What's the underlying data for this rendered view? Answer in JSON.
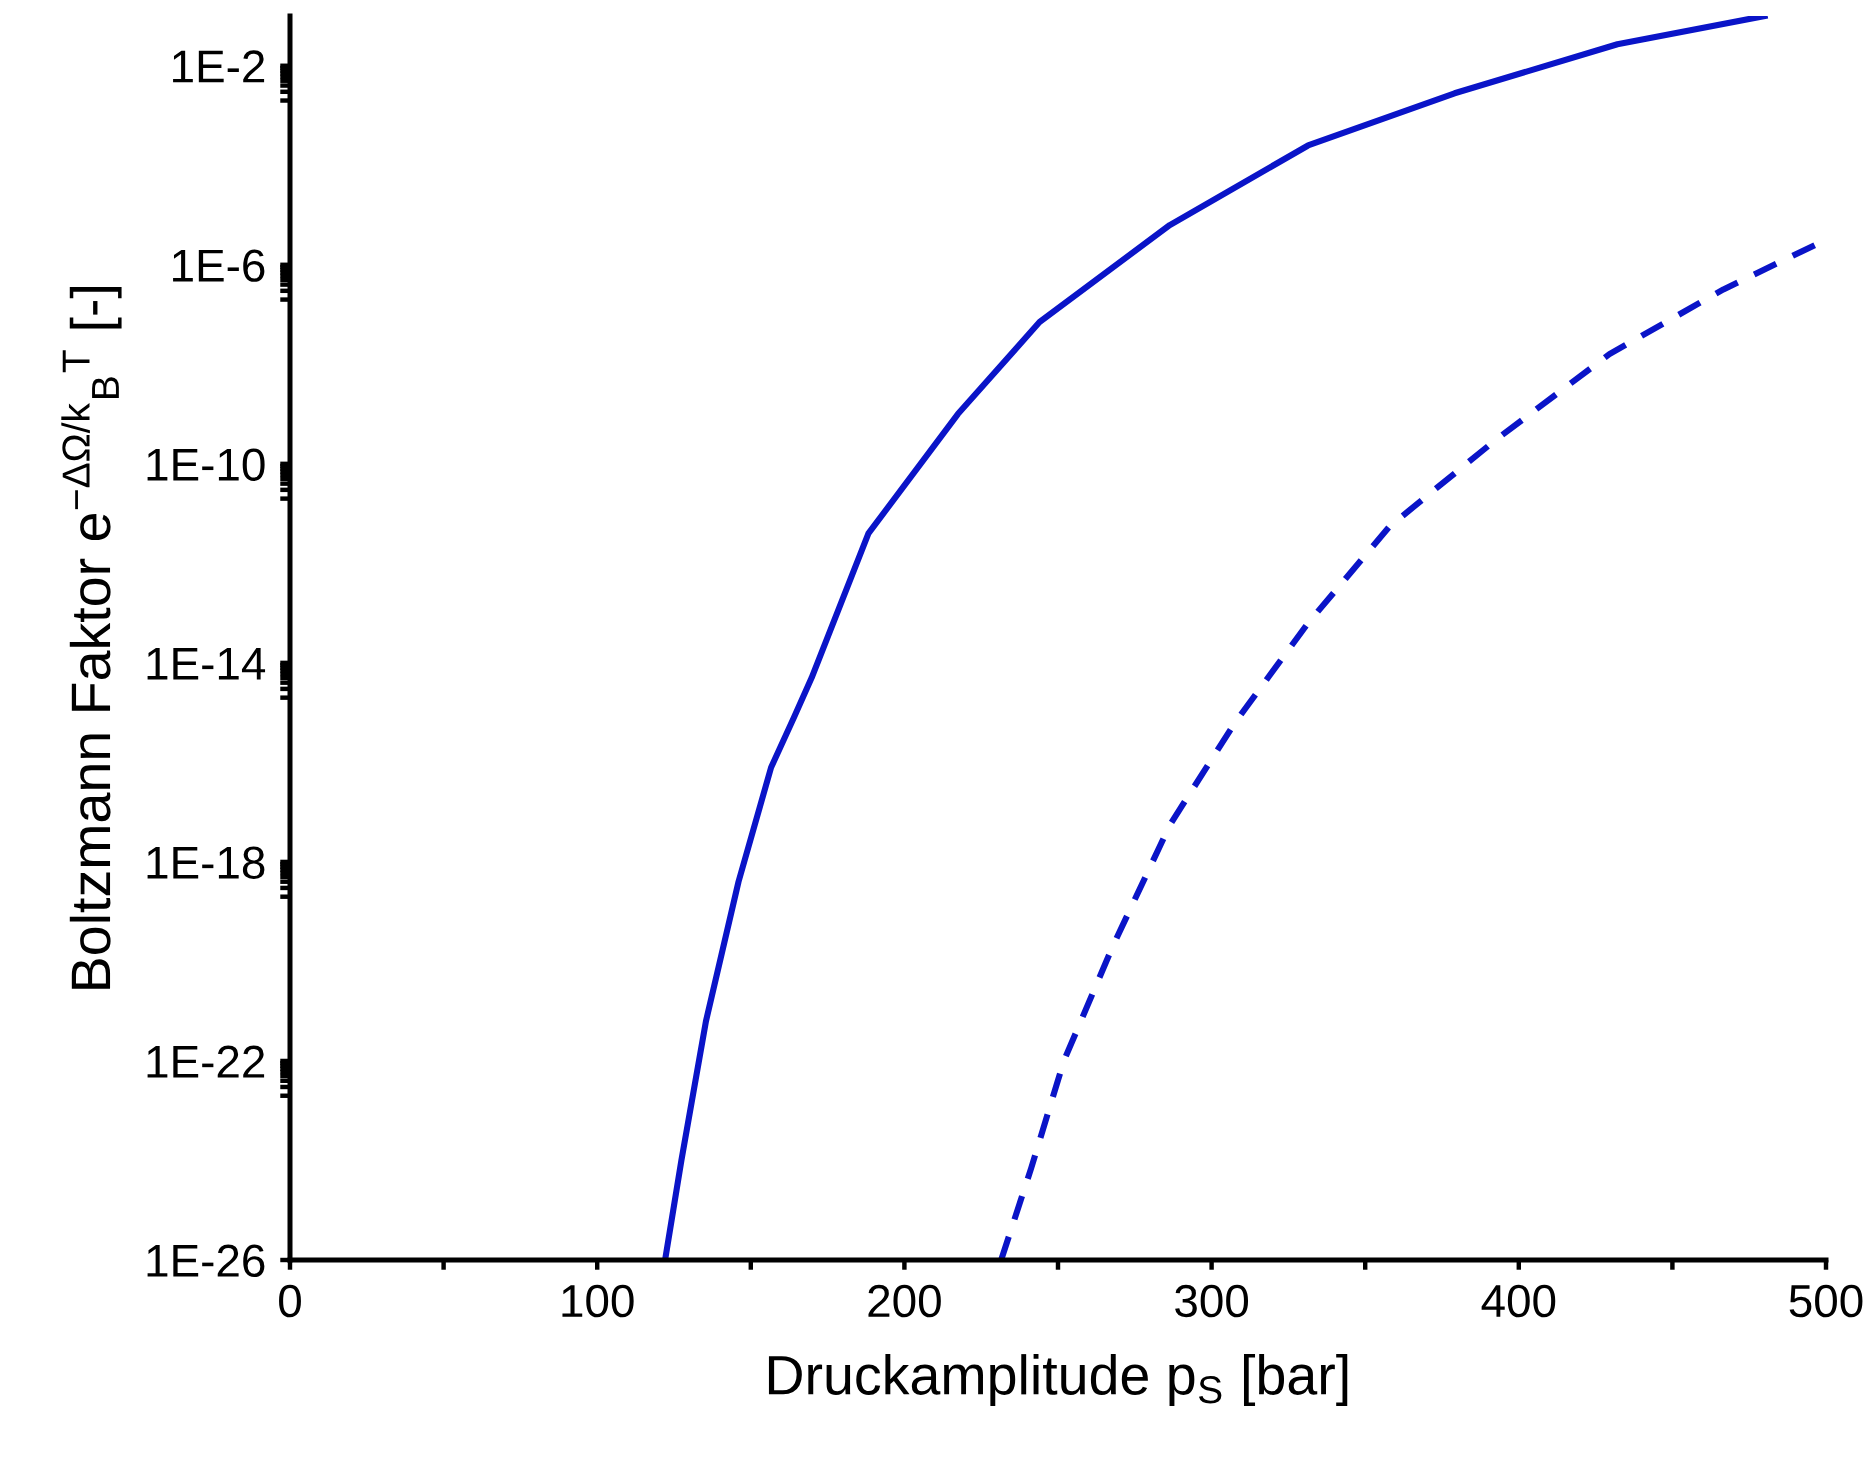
{
  "chart_data": {
    "type": "line",
    "xlabel": "Druckamplitude p$_{S}$ [bar]",
    "ylabel": "Boltzmann Faktor e$^{−ΔΩ/k}$$_{B}$$^{T}$ [-]",
    "log": "y",
    "grid": false,
    "marker": "none",
    "xlim": [
      0,
      500
    ],
    "ylim": [
      1e-26,
      0.1
    ],
    "xticks": [
      0,
      {
        "value": 50,
        "label": null
      },
      100,
      {
        "value": 150,
        "label": null
      },
      200,
      {
        "value": 250,
        "label": null
      },
      300,
      {
        "value": 350,
        "label": null
      },
      400,
      {
        "value": 450,
        "label": null
      },
      500
    ],
    "yticks": [
      {
        "value": 1e-26,
        "label": "1E-26"
      },
      {
        "value": 1e-22,
        "label": "1E-22"
      },
      {
        "value": 9e-23,
        "label": null
      },
      {
        "value": 8e-23,
        "label": null
      },
      {
        "value": 7e-23,
        "label": null
      },
      {
        "value": 6e-23,
        "label": null
      },
      {
        "value": 5e-23,
        "label": null
      },
      {
        "value": 4e-23,
        "label": null
      },
      {
        "value": 3e-23,
        "label": null
      },
      {
        "value": 2e-23,
        "label": null
      },
      {
        "value": 1e-18,
        "label": "1E-18"
      },
      {
        "value": 9e-19,
        "label": null
      },
      {
        "value": 8e-19,
        "label": null
      },
      {
        "value": 7e-19,
        "label": null
      },
      {
        "value": 6e-19,
        "label": null
      },
      {
        "value": 5e-19,
        "label": null
      },
      {
        "value": 4e-19,
        "label": null
      },
      {
        "value": 3e-19,
        "label": null
      },
      {
        "value": 2e-19,
        "label": null
      },
      {
        "value": 1e-14,
        "label": "1E-14"
      },
      {
        "value": 9e-15,
        "label": null
      },
      {
        "value": 8e-15,
        "label": null
      },
      {
        "value": 7e-15,
        "label": null
      },
      {
        "value": 6e-15,
        "label": null
      },
      {
        "value": 5e-15,
        "label": null
      },
      {
        "value": 4e-15,
        "label": null
      },
      {
        "value": 3e-15,
        "label": null
      },
      {
        "value": 2e-15,
        "label": null
      },
      {
        "value": 1e-10,
        "label": "1E-10"
      },
      {
        "value": 9e-11,
        "label": null
      },
      {
        "value": 8e-11,
        "label": null
      },
      {
        "value": 7e-11,
        "label": null
      },
      {
        "value": 6e-11,
        "label": null
      },
      {
        "value": 5e-11,
        "label": null
      },
      {
        "value": 4e-11,
        "label": null
      },
      {
        "value": 3e-11,
        "label": null
      },
      {
        "value": 2e-11,
        "label": null
      },
      {
        "value": 1e-06,
        "label": "1E-6"
      },
      {
        "value": 9e-07,
        "label": null
      },
      {
        "value": 8e-07,
        "label": null
      },
      {
        "value": 7e-07,
        "label": null
      },
      {
        "value": 6e-07,
        "label": null
      },
      {
        "value": 5e-07,
        "label": null
      },
      {
        "value": 4e-07,
        "label": null
      },
      {
        "value": 3e-07,
        "label": null
      },
      {
        "value": 2e-07,
        "label": null
      },
      {
        "value": 0.01,
        "label": "1E-2"
      },
      {
        "value": 0.009,
        "label": null
      },
      {
        "value": 0.008,
        "label": null
      },
      {
        "value": 0.007,
        "label": null
      },
      {
        "value": 0.006,
        "label": null
      },
      {
        "value": 0.005,
        "label": null
      },
      {
        "value": 0.004,
        "label": null
      },
      {
        "value": 0.003,
        "label": null
      },
      {
        "value": 0.002,
        "label": null
      }
    ],
    "series": [
      {
        "color": "#0a14c8",
        "line_style": "solid",
        "x": [
          122.1,
          127.4,
          135.4,
          146.0,
          156.6,
          164.0,
          169.8,
          188.3,
          217.4,
          244.0,
          286.4,
          331.4,
          379.1,
          432.1,
          480
        ],
        "values": [
          1e-26,
          1e-24,
          6.3e-22,
          4e-19,
          7.9e-17,
          7.9e-16,
          5e-15,
          4e-12,
          1e-09,
          7.1e-08,
          6.3e-06,
          0.00025,
          0.0028,
          0.027,
          0.1
        ]
      },
      {
        "color": "#0a14c8",
        "line_style": "dashed",
        "x": [
          231.5,
          241.3,
          251.9,
          267.8,
          286.4,
          307.6,
          331.4,
          357.9,
          392.4,
          429.5,
          466.6,
          500
        ],
        "values": [
          1e-26,
          7.1e-25,
          1e-22,
          2e-20,
          5.5e-18,
          6.3e-16,
          6.3e-14,
          5.5e-12,
          3e-10,
          1.6e-08,
          3.2e-07,
          3.2e-06
        ]
      }
    ]
  }
}
